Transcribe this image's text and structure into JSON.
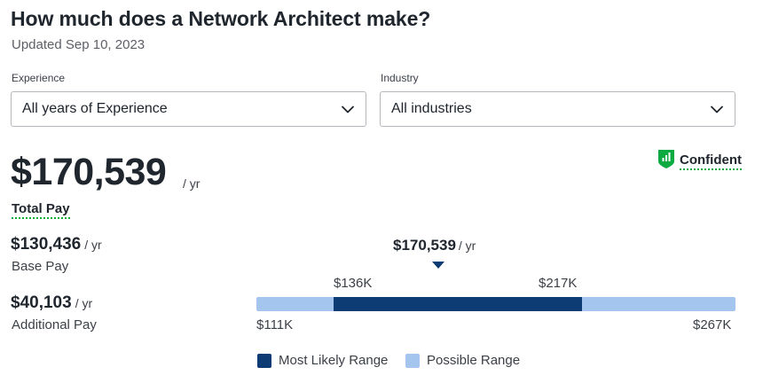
{
  "header": {
    "title": "How much does a Network Architect make?",
    "updated": "Updated Sep 10, 2023"
  },
  "filters": {
    "experience": {
      "label": "Experience",
      "value": "All years of Experience"
    },
    "industry": {
      "label": "Industry",
      "value": "All industries"
    }
  },
  "confidence": {
    "label": "Confident",
    "color": "#0caa41",
    "icon": "bar-chart-shield-icon"
  },
  "total_pay": {
    "amount": "$170,539",
    "unit": "/ yr",
    "label": "Total Pay"
  },
  "base_pay": {
    "amount": "$130,436",
    "unit": "/ yr",
    "label": "Base Pay"
  },
  "additional_pay": {
    "amount": "$40,103",
    "unit": "/ yr",
    "label": "Additional Pay"
  },
  "range": {
    "median_label": "$170,539",
    "median_unit": "/ yr",
    "likely_low_label": "$136K",
    "likely_high_label": "$217K",
    "min_label": "$111K",
    "max_label": "$267K",
    "min": 111,
    "max": 267,
    "likely_low": 136,
    "likely_high": 217,
    "median": 170.539,
    "likely_color": "#0d3b73",
    "possible_color": "#a3c5ee"
  },
  "legend": {
    "most_likely": "Most Likely Range",
    "possible": "Possible Range"
  }
}
